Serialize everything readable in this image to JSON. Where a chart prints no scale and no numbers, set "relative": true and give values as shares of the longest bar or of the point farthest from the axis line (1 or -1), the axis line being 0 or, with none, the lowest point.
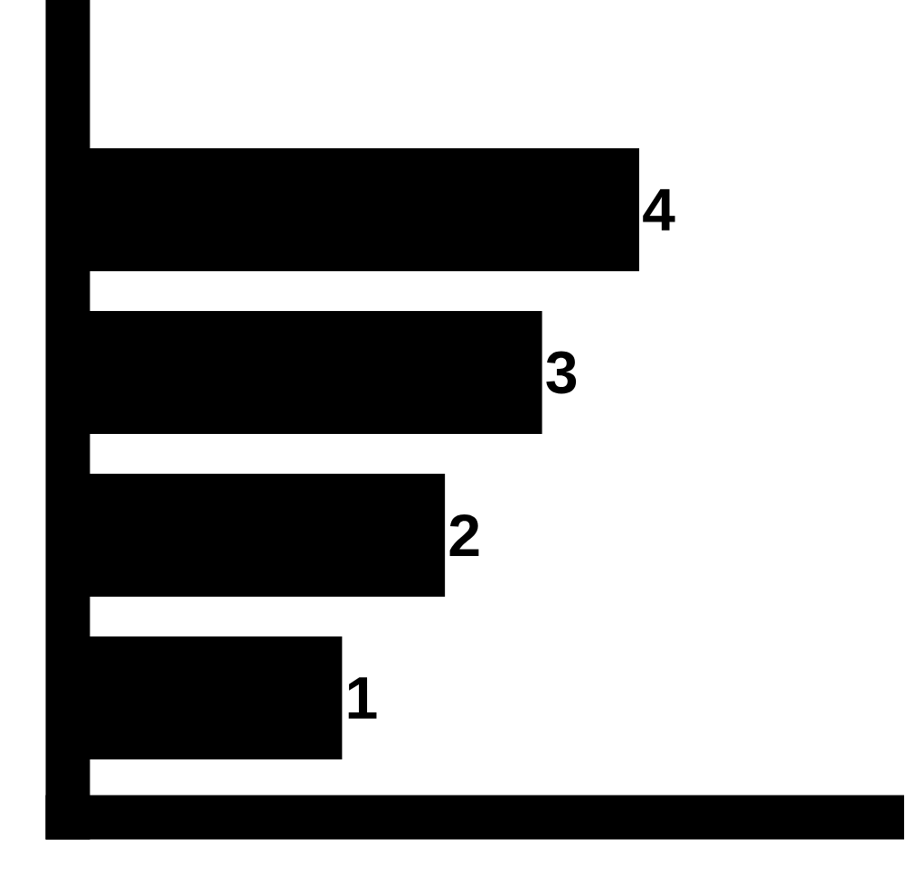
{
  "chart_data": {
    "type": "bar",
    "orientation": "horizontal",
    "relative": true,
    "categories": [
      "4",
      "3",
      "2",
      "1"
    ],
    "values": [
      1,
      0.83,
      0.66,
      0.48
    ],
    "color": "#000000"
  }
}
